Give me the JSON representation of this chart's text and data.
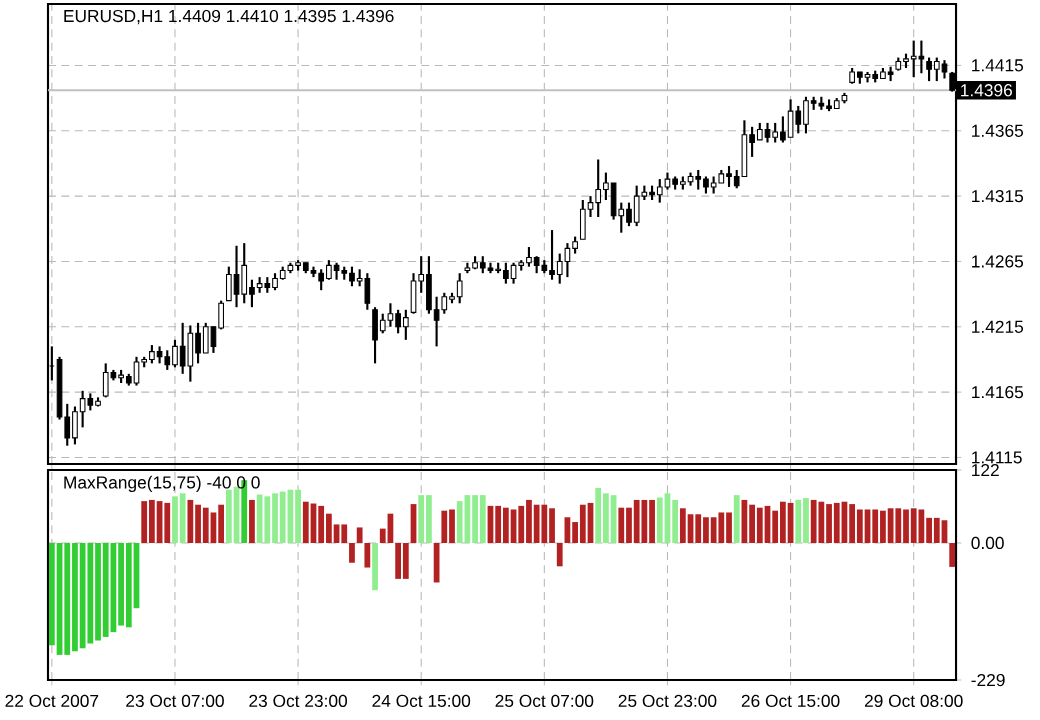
{
  "chart_data": [
    {
      "type": "candlestick",
      "title": "EURUSD,H1  1.4409 1.4410 1.4395 1.4396",
      "categories": [
        null,
        null,
        null,
        null,
        null,
        null,
        null,
        null,
        null,
        null,
        null,
        null,
        null,
        null,
        null,
        null,
        null,
        null,
        null,
        null,
        null,
        null,
        null,
        null,
        null,
        null,
        null,
        null,
        null,
        null,
        null,
        null,
        null,
        null,
        null,
        null,
        null,
        null,
        null,
        null,
        null,
        null,
        null,
        null,
        null,
        null,
        null,
        null,
        null,
        null,
        null,
        null,
        null,
        null,
        null,
        null,
        null,
        null,
        null,
        null,
        null,
        null,
        null,
        null,
        null,
        null,
        null,
        null,
        null,
        null,
        null,
        null,
        null,
        null,
        null,
        null,
        null,
        null,
        null,
        null,
        null,
        null,
        null,
        null,
        null,
        null,
        null,
        null,
        null,
        null,
        null,
        null,
        null,
        null,
        null,
        null,
        null,
        null,
        null,
        null,
        null,
        null,
        null,
        null,
        null,
        null,
        null,
        null,
        null,
        null,
        null,
        null,
        null,
        null,
        null,
        null,
        null,
        null
      ],
      "ohlc": [
        [
          1.4185,
          1.42,
          1.4174,
          1.4185
        ],
        [
          1.419,
          1.4192,
          1.4144,
          1.4146
        ],
        [
          1.4146,
          1.4156,
          1.4124,
          1.413
        ],
        [
          1.413,
          1.4154,
          1.4125,
          1.415
        ],
        [
          1.415,
          1.4166,
          1.4138,
          1.416
        ],
        [
          1.416,
          1.4164,
          1.4151,
          1.4155
        ],
        [
          1.4155,
          1.4161,
          1.4154,
          1.4158
        ],
        [
          1.4162,
          1.4187,
          1.4161,
          1.418
        ],
        [
          1.418,
          1.4182,
          1.4174,
          1.4176
        ],
        [
          1.4176,
          1.4182,
          1.4172,
          1.4178
        ],
        [
          1.4177,
          1.4179,
          1.417,
          1.4172
        ],
        [
          1.4172,
          1.4192,
          1.417,
          1.4188
        ],
        [
          1.4188,
          1.4192,
          1.4184,
          1.419
        ],
        [
          1.419,
          1.4201,
          1.4187,
          1.4196
        ],
        [
          1.4196,
          1.42,
          1.4187,
          1.4192
        ],
        [
          1.4192,
          1.4197,
          1.4182,
          1.4186
        ],
        [
          1.4186,
          1.4205,
          1.4184,
          1.42
        ],
        [
          1.42,
          1.4218,
          1.4179,
          1.4185
        ],
        [
          1.4185,
          1.4216,
          1.4173,
          1.421
        ],
        [
          1.421,
          1.4218,
          1.4187,
          1.4195
        ],
        [
          1.4195,
          1.4218,
          1.4195,
          1.4215
        ],
        [
          1.4215,
          1.4215,
          1.4195,
          1.42
        ],
        [
          1.4214,
          1.4235,
          1.4213,
          1.4233
        ],
        [
          1.4235,
          1.4261,
          1.4235,
          1.4255
        ],
        [
          1.4255,
          1.4277,
          1.423,
          1.424
        ],
        [
          1.424,
          1.4279,
          1.4233,
          1.4262
        ],
        [
          1.4245,
          1.4251,
          1.423,
          1.424
        ],
        [
          1.4245,
          1.4253,
          1.4241,
          1.4248
        ],
        [
          1.4248,
          1.4253,
          1.4241,
          1.4245
        ],
        [
          1.4245,
          1.4256,
          1.4243,
          1.4252
        ],
        [
          1.4252,
          1.4261,
          1.4251,
          1.4258
        ],
        [
          1.4258,
          1.4264,
          1.4256,
          1.4262
        ],
        [
          1.4262,
          1.4266,
          1.4258,
          1.4264
        ],
        [
          1.4264,
          1.4264,
          1.4256,
          1.4258
        ],
        [
          1.4258,
          1.4261,
          1.4253,
          1.4256
        ],
        [
          1.4256,
          1.4259,
          1.4243,
          1.425
        ],
        [
          1.4252,
          1.4266,
          1.4251,
          1.4262
        ],
        [
          1.4262,
          1.4264,
          1.4251,
          1.4258
        ],
        [
          1.4258,
          1.4261,
          1.4251,
          1.4256
        ],
        [
          1.4256,
          1.4261,
          1.4246,
          1.425
        ],
        [
          1.425,
          1.4259,
          1.4246,
          1.4252
        ],
        [
          1.4252,
          1.4256,
          1.4228,
          1.4233
        ],
        [
          1.4228,
          1.423,
          1.4187,
          1.4205
        ],
        [
          1.4212,
          1.4225,
          1.421,
          1.422
        ],
        [
          1.422,
          1.4233,
          1.4215,
          1.4225
        ],
        [
          1.4225,
          1.4228,
          1.421,
          1.4215
        ],
        [
          1.4215,
          1.4228,
          1.4205,
          1.4222
        ],
        [
          1.4226,
          1.4256,
          1.4225,
          1.425
        ],
        [
          1.425,
          1.4269,
          1.4241,
          1.4255
        ],
        [
          1.4255,
          1.4269,
          1.4225,
          1.4228
        ],
        [
          1.4228,
          1.4238,
          1.42,
          1.422
        ],
        [
          1.4228,
          1.4241,
          1.4225,
          1.4238
        ],
        [
          1.4236,
          1.4241,
          1.4233,
          1.4238
        ],
        [
          1.4238,
          1.4256,
          1.4233,
          1.425
        ],
        [
          1.4258,
          1.4264,
          1.4256,
          1.426
        ],
        [
          1.426,
          1.4269,
          1.4259,
          1.4264
        ],
        [
          1.4264,
          1.4269,
          1.4256,
          1.426
        ],
        [
          1.426,
          1.4264,
          1.4256,
          1.4258
        ],
        [
          1.4258,
          1.4264,
          1.4256,
          1.4259
        ],
        [
          1.4258,
          1.4264,
          1.4248,
          1.4252
        ],
        [
          1.4252,
          1.4264,
          1.4248,
          1.4262
        ],
        [
          1.4262,
          1.4266,
          1.4258,
          1.4264
        ],
        [
          1.4264,
          1.4276,
          1.4261,
          1.4268
        ],
        [
          1.4268,
          1.4269,
          1.4256,
          1.4262
        ],
        [
          1.4262,
          1.4266,
          1.4256,
          1.4258
        ],
        [
          1.4258,
          1.4289,
          1.4251,
          1.4255
        ],
        [
          1.4255,
          1.4271,
          1.4248,
          1.4265
        ],
        [
          1.4265,
          1.4279,
          1.4253,
          1.4275
        ],
        [
          1.4275,
          1.4284,
          1.4271,
          1.428
        ],
        [
          1.4282,
          1.4312,
          1.4282,
          1.4305
        ],
        [
          1.4305,
          1.4315,
          1.4299,
          1.431
        ],
        [
          1.431,
          1.4343,
          1.4299,
          1.432
        ],
        [
          1.432,
          1.4333,
          1.4312,
          1.4325
        ],
        [
          1.4325,
          1.4325,
          1.4297,
          1.43
        ],
        [
          1.43,
          1.431,
          1.4287,
          1.4305
        ],
        [
          1.4305,
          1.431,
          1.4292,
          1.4295
        ],
        [
          1.4295,
          1.4323,
          1.4292,
          1.4315
        ],
        [
          1.4315,
          1.4323,
          1.4312,
          1.4318
        ],
        [
          1.4318,
          1.4323,
          1.4312,
          1.4316
        ],
        [
          1.4316,
          1.4328,
          1.431,
          1.4322
        ],
        [
          1.4322,
          1.4333,
          1.432,
          1.4328
        ],
        [
          1.4328,
          1.433,
          1.432,
          1.4324
        ],
        [
          1.4324,
          1.433,
          1.432,
          1.4326
        ],
        [
          1.4326,
          1.4333,
          1.4323,
          1.433
        ],
        [
          1.433,
          1.4335,
          1.432,
          1.4328
        ],
        [
          1.4328,
          1.433,
          1.4317,
          1.4322
        ],
        [
          1.4322,
          1.433,
          1.4317,
          1.4325
        ],
        [
          1.4325,
          1.4335,
          1.4325,
          1.4332
        ],
        [
          1.4332,
          1.4338,
          1.4322,
          1.433
        ],
        [
          1.433,
          1.4335,
          1.4321,
          1.4323
        ],
        [
          1.433,
          1.4373,
          1.433,
          1.4362
        ],
        [
          1.4362,
          1.4368,
          1.4345,
          1.4356
        ],
        [
          1.4358,
          1.4371,
          1.4358,
          1.4366
        ],
        [
          1.4366,
          1.4371,
          1.4356,
          1.436
        ],
        [
          1.436,
          1.4371,
          1.4356,
          1.4364
        ],
        [
          1.4364,
          1.4376,
          1.4356,
          1.4358
        ],
        [
          1.436,
          1.4389,
          1.436,
          1.438
        ],
        [
          1.438,
          1.4384,
          1.4363,
          1.437
        ],
        [
          1.437,
          1.4391,
          1.4363,
          1.4388
        ],
        [
          1.4388,
          1.4391,
          1.4381,
          1.4386
        ],
        [
          1.4386,
          1.4391,
          1.4381,
          1.4384
        ],
        [
          1.4384,
          1.4389,
          1.438,
          1.4382
        ],
        [
          1.4382,
          1.439,
          1.4382,
          1.4388
        ],
        [
          1.4388,
          1.4394,
          1.4386,
          1.4392
        ],
        [
          1.4402,
          1.4413,
          1.4401,
          1.441
        ],
        [
          1.441,
          1.441,
          1.4401,
          1.4406
        ],
        [
          1.4406,
          1.441,
          1.4402,
          1.4408
        ],
        [
          1.4408,
          1.4411,
          1.4402,
          1.4405
        ],
        [
          1.4405,
          1.4413,
          1.4405,
          1.441
        ],
        [
          1.441,
          1.4414,
          1.4403,
          1.4408
        ],
        [
          1.4412,
          1.4421,
          1.4411,
          1.4418
        ],
        [
          1.4418,
          1.4424,
          1.4413,
          1.442
        ],
        [
          1.442,
          1.4434,
          1.4406,
          1.4422
        ],
        [
          1.4422,
          1.4434,
          1.4409,
          1.442
        ],
        [
          1.4418,
          1.4421,
          1.4403,
          1.4412
        ],
        [
          1.4412,
          1.4421,
          1.4403,
          1.4418
        ],
        [
          1.4416,
          1.4419,
          1.4405,
          1.441
        ],
        [
          1.4409,
          1.441,
          1.4395,
          1.4396
        ]
      ],
      "color": "#000000",
      "ylim": [
        1.411,
        1.4462
      ],
      "yticks": [
        1.4115,
        1.4165,
        1.4215,
        1.4265,
        1.4315,
        1.4365,
        1.4415
      ],
      "ref_lines": [
        {
          "axis": "y",
          "value": 1.4396,
          "label": "1.4396",
          "color": "#c0c0c0"
        }
      ],
      "grid": true,
      "tick_labels": "y"
    },
    {
      "type": "bar",
      "title": "MaxRange(15,75) -40 0 0",
      "categories": [
        "22 Oct 2007",
        null,
        null,
        null,
        null,
        null,
        null,
        null,
        null,
        null,
        null,
        null,
        null,
        null,
        null,
        null,
        "23 Oct 07:00",
        null,
        null,
        null,
        null,
        null,
        null,
        null,
        null,
        null,
        null,
        null,
        null,
        null,
        null,
        null,
        "23 Oct 23:00",
        null,
        null,
        null,
        null,
        null,
        null,
        null,
        null,
        null,
        null,
        null,
        null,
        null,
        null,
        null,
        "24 Oct 15:00",
        null,
        null,
        null,
        null,
        null,
        null,
        null,
        null,
        null,
        null,
        null,
        null,
        null,
        null,
        null,
        "25 Oct 07:00",
        null,
        null,
        null,
        null,
        null,
        null,
        null,
        null,
        null,
        null,
        null,
        null,
        null,
        null,
        null,
        "25 Oct 23:00",
        null,
        null,
        null,
        null,
        null,
        null,
        null,
        null,
        null,
        null,
        null,
        null,
        null,
        null,
        null,
        "26 Oct 15:00",
        null,
        null,
        null,
        null,
        null,
        null,
        null,
        null,
        null,
        null,
        null,
        null,
        null,
        null,
        null,
        "29 Oct 08:00",
        null,
        null,
        null,
        null,
        null
      ],
      "values": [
        -171,
        -187,
        -187,
        -181,
        -176,
        -168,
        -163,
        -157,
        -149,
        -138,
        -141,
        -109,
        70,
        72,
        70,
        67,
        78,
        83,
        72,
        64,
        59,
        51,
        64,
        89,
        94,
        105,
        72,
        81,
        78,
        83,
        86,
        89,
        89,
        69,
        66,
        62,
        49,
        31,
        31,
        -33,
        26,
        -41,
        -79,
        24,
        49,
        -60,
        -60,
        65,
        80,
        80,
        -66,
        54,
        56,
        70,
        80,
        80,
        80,
        62,
        62,
        59,
        56,
        62,
        72,
        64,
        64,
        58,
        -39,
        43,
        35,
        64,
        67,
        92,
        83,
        80,
        59,
        59,
        72,
        72,
        72,
        76,
        83,
        72,
        58,
        48,
        48,
        43,
        43,
        51,
        51,
        80,
        72,
        64,
        59,
        62,
        54,
        69,
        67,
        72,
        75,
        72,
        69,
        65,
        67,
        69,
        65,
        56,
        56,
        56,
        54,
        58,
        58,
        56,
        58,
        56,
        42,
        42,
        38,
        -40
      ],
      "colors": [
        "#32cd32",
        "#32cd32",
        "#32cd32",
        "#32cd32",
        "#32cd32",
        "#32cd32",
        "#32cd32",
        "#32cd32",
        "#32cd32",
        "#32cd32",
        "#32cd32",
        "#32cd32",
        "#b22222",
        "#b22222",
        "#b22222",
        "#b22222",
        "#90ee90",
        "#90ee90",
        "#b22222",
        "#b22222",
        "#b22222",
        "#b22222",
        "#b22222",
        "#90ee90",
        "#90ee90",
        "#32cd32",
        "#b22222",
        "#90ee90",
        "#90ee90",
        "#90ee90",
        "#90ee90",
        "#90ee90",
        "#90ee90",
        "#b22222",
        "#b22222",
        "#b22222",
        "#b22222",
        "#b22222",
        "#b22222",
        "#b22222",
        "#b22222",
        "#b22222",
        "#90ee90",
        "#b22222",
        "#b22222",
        "#b22222",
        "#b22222",
        "#b22222",
        "#90ee90",
        "#90ee90",
        "#b22222",
        "#b22222",
        "#b22222",
        "#90ee90",
        "#90ee90",
        "#90ee90",
        "#90ee90",
        "#b22222",
        "#b22222",
        "#b22222",
        "#b22222",
        "#b22222",
        "#b22222",
        "#b22222",
        "#b22222",
        "#b22222",
        "#b22222",
        "#b22222",
        "#b22222",
        "#b22222",
        "#b22222",
        "#90ee90",
        "#90ee90",
        "#90ee90",
        "#b22222",
        "#b22222",
        "#b22222",
        "#b22222",
        "#b22222",
        "#90ee90",
        "#90ee90",
        "#90ee90",
        "#b22222",
        "#b22222",
        "#b22222",
        "#b22222",
        "#b22222",
        "#b22222",
        "#b22222",
        "#90ee90",
        "#b22222",
        "#b22222",
        "#b22222",
        "#b22222",
        "#b22222",
        "#b22222",
        "#b22222",
        "#90ee90",
        "#90ee90",
        "#b22222",
        "#b22222",
        "#b22222",
        "#b22222",
        "#b22222",
        "#b22222",
        "#b22222",
        "#b22222",
        "#b22222",
        "#b22222",
        "#b22222",
        "#b22222",
        "#b22222",
        "#b22222",
        "#b22222",
        "#b22222",
        "#b22222",
        "#b22222",
        "#b22222"
      ],
      "ylim": [
        -229,
        122
      ],
      "yticks": [
        122,
        {
          "value": 0,
          "label": "0.00"
        },
        -229
      ],
      "grid": true
    }
  ]
}
